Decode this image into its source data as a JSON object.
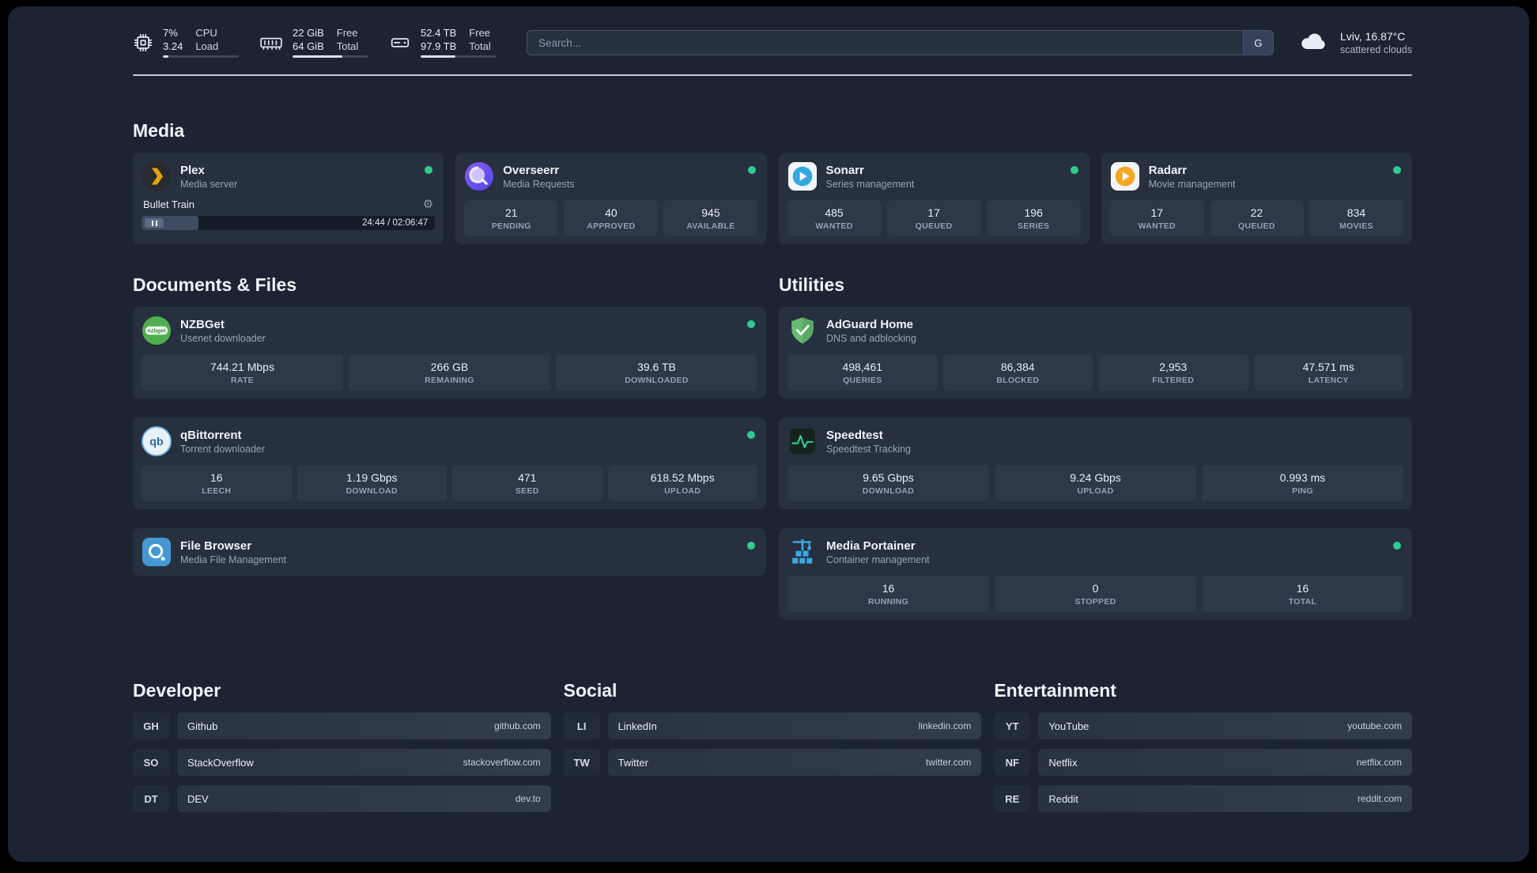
{
  "topbar": {
    "cpu": {
      "percent": "7%",
      "load": "3.24",
      "label_top": "CPU",
      "label_bottom": "Load",
      "bar_percent": 7
    },
    "memory": {
      "free": "22 GiB",
      "total": "64 GiB",
      "free_label": "Free",
      "total_label": "Total",
      "bar_percent": 66
    },
    "disk": {
      "free": "52.4 TB",
      "total": "97.9 TB",
      "free_label": "Free",
      "total_label": "Total",
      "bar_percent": 46
    },
    "search": {
      "placeholder": "Search...",
      "button_label": "G"
    },
    "weather": {
      "location": "Lviv, 16.87°C",
      "condition": "scattered clouds"
    }
  },
  "media": {
    "title": "Media",
    "plex": {
      "name": "Plex",
      "desc": "Media server",
      "now_playing": "Bullet Train",
      "time": "24:44 / 02:06:47",
      "progress_percent": 19.5
    },
    "overseerr": {
      "name": "Overseerr",
      "desc": "Media Requests",
      "stats": [
        {
          "value": "21",
          "label": "PENDING"
        },
        {
          "value": "40",
          "label": "APPROVED"
        },
        {
          "value": "945",
          "label": "AVAILABLE"
        }
      ]
    },
    "sonarr": {
      "name": "Sonarr",
      "desc": "Series management",
      "stats": [
        {
          "value": "485",
          "label": "WANTED"
        },
        {
          "value": "17",
          "label": "QUEUED"
        },
        {
          "value": "196",
          "label": "SERIES"
        }
      ]
    },
    "radarr": {
      "name": "Radarr",
      "desc": "Movie management",
      "stats": [
        {
          "value": "17",
          "label": "WANTED"
        },
        {
          "value": "22",
          "label": "QUEUED"
        },
        {
          "value": "834",
          "label": "MOVIES"
        }
      ]
    }
  },
  "documents": {
    "title": "Documents & Files",
    "nzbget": {
      "name": "NZBGet",
      "desc": "Usenet downloader",
      "stats": [
        {
          "value": "744.21 Mbps",
          "label": "RATE"
        },
        {
          "value": "266 GB",
          "label": "REMAINING"
        },
        {
          "value": "39.6 TB",
          "label": "DOWNLOADED"
        }
      ]
    },
    "qbittorrent": {
      "name": "qBittorrent",
      "desc": "Torrent downloader",
      "stats": [
        {
          "value": "16",
          "label": "LEECH"
        },
        {
          "value": "1.19 Gbps",
          "label": "DOWNLOAD"
        },
        {
          "value": "471",
          "label": "SEED"
        },
        {
          "value": "618.52 Mbps",
          "label": "UPLOAD"
        }
      ]
    },
    "filebrowser": {
      "name": "File Browser",
      "desc": "Media File Management"
    }
  },
  "utilities": {
    "title": "Utilities",
    "adguard": {
      "name": "AdGuard Home",
      "desc": "DNS and adblocking",
      "stats": [
        {
          "value": "498,461",
          "label": "QUERIES"
        },
        {
          "value": "86,384",
          "label": "BLOCKED"
        },
        {
          "value": "2,953",
          "label": "FILTERED"
        },
        {
          "value": "47.571 ms",
          "label": "LATENCY"
        }
      ]
    },
    "speedtest": {
      "name": "Speedtest",
      "desc": "Speedtest Tracking",
      "stats": [
        {
          "value": "9.65 Gbps",
          "label": "DOWNLOAD"
        },
        {
          "value": "9.24 Gbps",
          "label": "UPLOAD"
        },
        {
          "value": "0.993 ms",
          "label": "PING"
        }
      ]
    },
    "portainer": {
      "name": "Media Portainer",
      "desc": "Container management",
      "stats": [
        {
          "value": "16",
          "label": "RUNNING"
        },
        {
          "value": "0",
          "label": "STOPPED"
        },
        {
          "value": "16",
          "label": "TOTAL"
        }
      ]
    }
  },
  "bookmarks": [
    {
      "title": "Developer",
      "items": [
        {
          "abbr": "GH",
          "name": "Github",
          "url": "github.com"
        },
        {
          "abbr": "SO",
          "name": "StackOverflow",
          "url": "stackoverflow.com"
        },
        {
          "abbr": "DT",
          "name": "DEV",
          "url": "dev.to"
        }
      ]
    },
    {
      "title": "Social",
      "items": [
        {
          "abbr": "LI",
          "name": "LinkedIn",
          "url": "linkedin.com"
        },
        {
          "abbr": "TW",
          "name": "Twitter",
          "url": "twitter.com"
        }
      ]
    },
    {
      "title": "Entertainment",
      "items": [
        {
          "abbr": "YT",
          "name": "YouTube",
          "url": "youtube.com"
        },
        {
          "abbr": "NF",
          "name": "Netflix",
          "url": "netflix.com"
        },
        {
          "abbr": "RE",
          "name": "Reddit",
          "url": "reddit.com"
        }
      ]
    }
  ]
}
